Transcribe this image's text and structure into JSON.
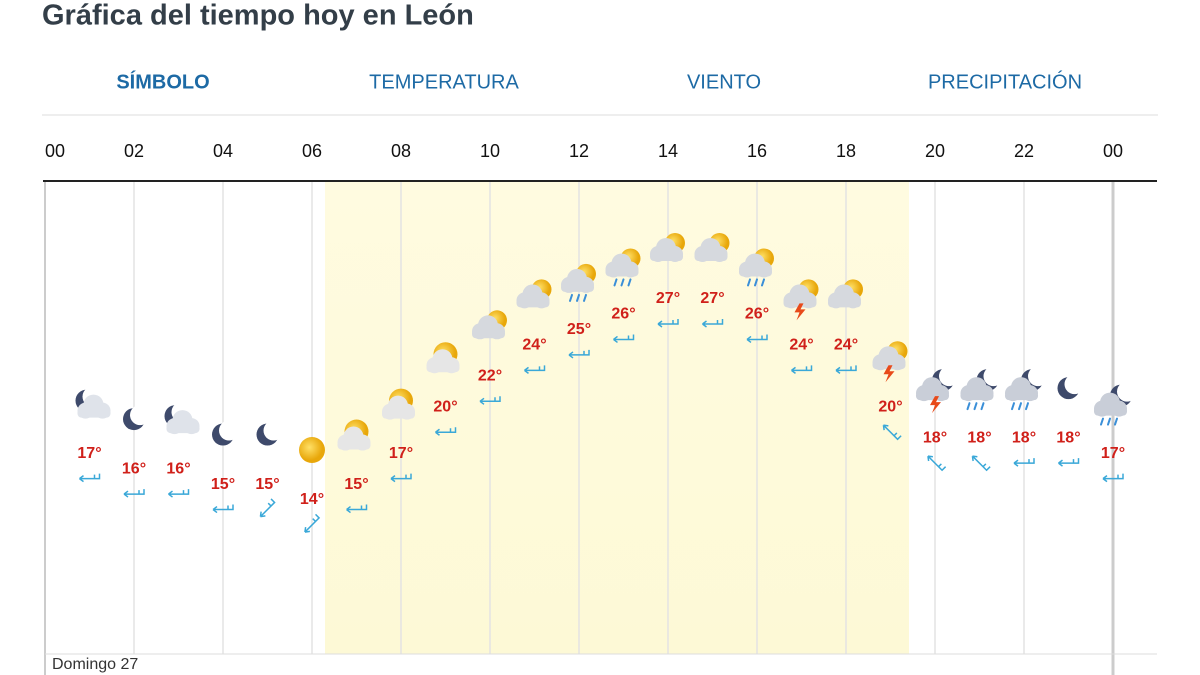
{
  "header": {
    "title": "Gráfica del tiempo hoy en León"
  },
  "tabs": [
    "SÍMBOLO",
    "TEMPERATURA",
    "VIENTO",
    "PRECIPITACIÓN"
  ],
  "chart_data": {
    "type": "line",
    "x": [
      1,
      2,
      3,
      4,
      5,
      6,
      7,
      8,
      9,
      10,
      11,
      12,
      13,
      14,
      15,
      16,
      17,
      18,
      19,
      20,
      21,
      22,
      23,
      24
    ],
    "xlim": [
      0,
      24
    ],
    "xticks": [
      {
        "value": 0,
        "label": "00"
      },
      {
        "value": 2,
        "label": "02"
      },
      {
        "value": 4,
        "label": "04"
      },
      {
        "value": 6,
        "label": "06"
      },
      {
        "value": 8,
        "label": "08"
      },
      10,
      12,
      14,
      16,
      18,
      20,
      22,
      {
        "value": 24,
        "label": "00"
      }
    ],
    "series": [
      {
        "color": "#d0201a",
        "values": [
          17,
          16,
          16,
          15,
          15,
          14,
          15,
          17,
          20,
          22,
          24,
          25,
          26,
          27,
          27,
          26,
          24,
          24,
          20,
          18,
          18,
          18,
          18,
          17
        ],
        "value_labels": [
          "17°",
          "16°",
          "16°",
          "15°",
          "15°",
          "14°",
          "15°",
          "17°",
          "20°",
          "22°",
          "24°",
          "25°",
          "26°",
          "27°",
          "27°",
          "26°",
          "24°",
          "24°",
          "20°",
          "18°",
          "18°",
          "18°",
          "18°",
          "17°"
        ]
      }
    ],
    "day_label": "Domingo 27"
  }
}
